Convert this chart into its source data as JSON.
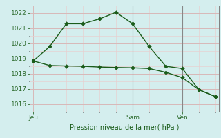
{
  "background_color": "#d4eeee",
  "grid_color_major": "#d8b8b8",
  "grid_color_minor": "#e8d0d0",
  "line_color": "#1a5c1a",
  "x_ticks_labels": [
    "Jeu",
    "Sam",
    "Ven"
  ],
  "x_ticks_pos": [
    0,
    6,
    9
  ],
  "xlabel": "Pression niveau de la mer( hPa )",
  "yticks": [
    1016,
    1017,
    1018,
    1019,
    1020,
    1021,
    1022
  ],
  "ylim": [
    1015.5,
    1022.5
  ],
  "xlim": [
    -0.2,
    11.2
  ],
  "line1_x": [
    0,
    1,
    2,
    3,
    4,
    5,
    6,
    7,
    8,
    9,
    10,
    11
  ],
  "line1_y": [
    1018.85,
    1019.8,
    1021.3,
    1021.3,
    1021.62,
    1022.05,
    1021.3,
    1019.8,
    1018.5,
    1018.35,
    1016.95,
    1016.5
  ],
  "line2_x": [
    0,
    1,
    2,
    3,
    4,
    5,
    6,
    7,
    8,
    9,
    10,
    11
  ],
  "line2_y": [
    1018.85,
    1018.55,
    1018.52,
    1018.5,
    1018.45,
    1018.42,
    1018.4,
    1018.35,
    1018.1,
    1017.75,
    1016.95,
    1016.5
  ]
}
